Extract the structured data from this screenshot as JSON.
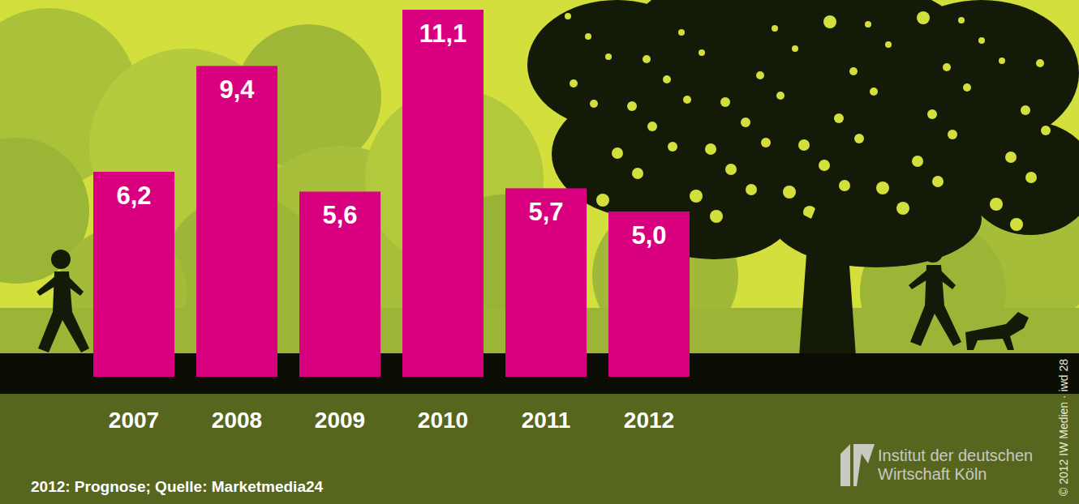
{
  "chart_data": {
    "type": "bar",
    "categories": [
      "2007",
      "2008",
      "2009",
      "2010",
      "2011",
      "2012"
    ],
    "values": [
      6.2,
      9.4,
      5.6,
      11.1,
      5.7,
      5.0
    ],
    "value_labels": [
      "6,2",
      "9,4",
      "5,6",
      "11,1",
      "5,7",
      "5,0"
    ],
    "color": "#d8007f",
    "ylim": [
      0,
      11.1
    ],
    "data_labels": true,
    "tick_labels": "x",
    "grid": false,
    "annotations": [
      "2012: Prognose; Quelle: Marketmedia24",
      "Institut der deutschen",
      "Wirtschaft Köln",
      "© 2012 IW Medien · iwd 28"
    ]
  }
}
